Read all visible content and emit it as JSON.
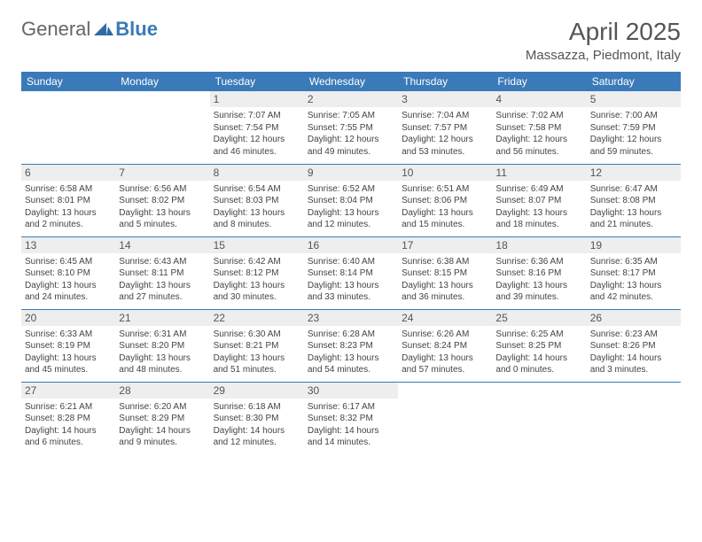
{
  "brand": {
    "part1": "General",
    "part2": "Blue"
  },
  "title": "April 2025",
  "location": "Massazza, Piedmont, Italy",
  "colors": {
    "header_bg": "#3a7ab8",
    "header_text": "#ffffff",
    "daynum_bg": "#eeeeee",
    "text": "#444444",
    "title": "#555555"
  },
  "day_headers": [
    "Sunday",
    "Monday",
    "Tuesday",
    "Wednesday",
    "Thursday",
    "Friday",
    "Saturday"
  ],
  "weeks": [
    [
      {
        "day": "",
        "sunrise": "",
        "sunset": "",
        "daylight": ""
      },
      {
        "day": "",
        "sunrise": "",
        "sunset": "",
        "daylight": ""
      },
      {
        "day": "1",
        "sunrise": "Sunrise: 7:07 AM",
        "sunset": "Sunset: 7:54 PM",
        "daylight": "Daylight: 12 hours and 46 minutes."
      },
      {
        "day": "2",
        "sunrise": "Sunrise: 7:05 AM",
        "sunset": "Sunset: 7:55 PM",
        "daylight": "Daylight: 12 hours and 49 minutes."
      },
      {
        "day": "3",
        "sunrise": "Sunrise: 7:04 AM",
        "sunset": "Sunset: 7:57 PM",
        "daylight": "Daylight: 12 hours and 53 minutes."
      },
      {
        "day": "4",
        "sunrise": "Sunrise: 7:02 AM",
        "sunset": "Sunset: 7:58 PM",
        "daylight": "Daylight: 12 hours and 56 minutes."
      },
      {
        "day": "5",
        "sunrise": "Sunrise: 7:00 AM",
        "sunset": "Sunset: 7:59 PM",
        "daylight": "Daylight: 12 hours and 59 minutes."
      }
    ],
    [
      {
        "day": "6",
        "sunrise": "Sunrise: 6:58 AM",
        "sunset": "Sunset: 8:01 PM",
        "daylight": "Daylight: 13 hours and 2 minutes."
      },
      {
        "day": "7",
        "sunrise": "Sunrise: 6:56 AM",
        "sunset": "Sunset: 8:02 PM",
        "daylight": "Daylight: 13 hours and 5 minutes."
      },
      {
        "day": "8",
        "sunrise": "Sunrise: 6:54 AM",
        "sunset": "Sunset: 8:03 PM",
        "daylight": "Daylight: 13 hours and 8 minutes."
      },
      {
        "day": "9",
        "sunrise": "Sunrise: 6:52 AM",
        "sunset": "Sunset: 8:04 PM",
        "daylight": "Daylight: 13 hours and 12 minutes."
      },
      {
        "day": "10",
        "sunrise": "Sunrise: 6:51 AM",
        "sunset": "Sunset: 8:06 PM",
        "daylight": "Daylight: 13 hours and 15 minutes."
      },
      {
        "day": "11",
        "sunrise": "Sunrise: 6:49 AM",
        "sunset": "Sunset: 8:07 PM",
        "daylight": "Daylight: 13 hours and 18 minutes."
      },
      {
        "day": "12",
        "sunrise": "Sunrise: 6:47 AM",
        "sunset": "Sunset: 8:08 PM",
        "daylight": "Daylight: 13 hours and 21 minutes."
      }
    ],
    [
      {
        "day": "13",
        "sunrise": "Sunrise: 6:45 AM",
        "sunset": "Sunset: 8:10 PM",
        "daylight": "Daylight: 13 hours and 24 minutes."
      },
      {
        "day": "14",
        "sunrise": "Sunrise: 6:43 AM",
        "sunset": "Sunset: 8:11 PM",
        "daylight": "Daylight: 13 hours and 27 minutes."
      },
      {
        "day": "15",
        "sunrise": "Sunrise: 6:42 AM",
        "sunset": "Sunset: 8:12 PM",
        "daylight": "Daylight: 13 hours and 30 minutes."
      },
      {
        "day": "16",
        "sunrise": "Sunrise: 6:40 AM",
        "sunset": "Sunset: 8:14 PM",
        "daylight": "Daylight: 13 hours and 33 minutes."
      },
      {
        "day": "17",
        "sunrise": "Sunrise: 6:38 AM",
        "sunset": "Sunset: 8:15 PM",
        "daylight": "Daylight: 13 hours and 36 minutes."
      },
      {
        "day": "18",
        "sunrise": "Sunrise: 6:36 AM",
        "sunset": "Sunset: 8:16 PM",
        "daylight": "Daylight: 13 hours and 39 minutes."
      },
      {
        "day": "19",
        "sunrise": "Sunrise: 6:35 AM",
        "sunset": "Sunset: 8:17 PM",
        "daylight": "Daylight: 13 hours and 42 minutes."
      }
    ],
    [
      {
        "day": "20",
        "sunrise": "Sunrise: 6:33 AM",
        "sunset": "Sunset: 8:19 PM",
        "daylight": "Daylight: 13 hours and 45 minutes."
      },
      {
        "day": "21",
        "sunrise": "Sunrise: 6:31 AM",
        "sunset": "Sunset: 8:20 PM",
        "daylight": "Daylight: 13 hours and 48 minutes."
      },
      {
        "day": "22",
        "sunrise": "Sunrise: 6:30 AM",
        "sunset": "Sunset: 8:21 PM",
        "daylight": "Daylight: 13 hours and 51 minutes."
      },
      {
        "day": "23",
        "sunrise": "Sunrise: 6:28 AM",
        "sunset": "Sunset: 8:23 PM",
        "daylight": "Daylight: 13 hours and 54 minutes."
      },
      {
        "day": "24",
        "sunrise": "Sunrise: 6:26 AM",
        "sunset": "Sunset: 8:24 PM",
        "daylight": "Daylight: 13 hours and 57 minutes."
      },
      {
        "day": "25",
        "sunrise": "Sunrise: 6:25 AM",
        "sunset": "Sunset: 8:25 PM",
        "daylight": "Daylight: 14 hours and 0 minutes."
      },
      {
        "day": "26",
        "sunrise": "Sunrise: 6:23 AM",
        "sunset": "Sunset: 8:26 PM",
        "daylight": "Daylight: 14 hours and 3 minutes."
      }
    ],
    [
      {
        "day": "27",
        "sunrise": "Sunrise: 6:21 AM",
        "sunset": "Sunset: 8:28 PM",
        "daylight": "Daylight: 14 hours and 6 minutes."
      },
      {
        "day": "28",
        "sunrise": "Sunrise: 6:20 AM",
        "sunset": "Sunset: 8:29 PM",
        "daylight": "Daylight: 14 hours and 9 minutes."
      },
      {
        "day": "29",
        "sunrise": "Sunrise: 6:18 AM",
        "sunset": "Sunset: 8:30 PM",
        "daylight": "Daylight: 14 hours and 12 minutes."
      },
      {
        "day": "30",
        "sunrise": "Sunrise: 6:17 AM",
        "sunset": "Sunset: 8:32 PM",
        "daylight": "Daylight: 14 hours and 14 minutes."
      },
      {
        "day": "",
        "sunrise": "",
        "sunset": "",
        "daylight": ""
      },
      {
        "day": "",
        "sunrise": "",
        "sunset": "",
        "daylight": ""
      },
      {
        "day": "",
        "sunrise": "",
        "sunset": "",
        "daylight": ""
      }
    ]
  ]
}
